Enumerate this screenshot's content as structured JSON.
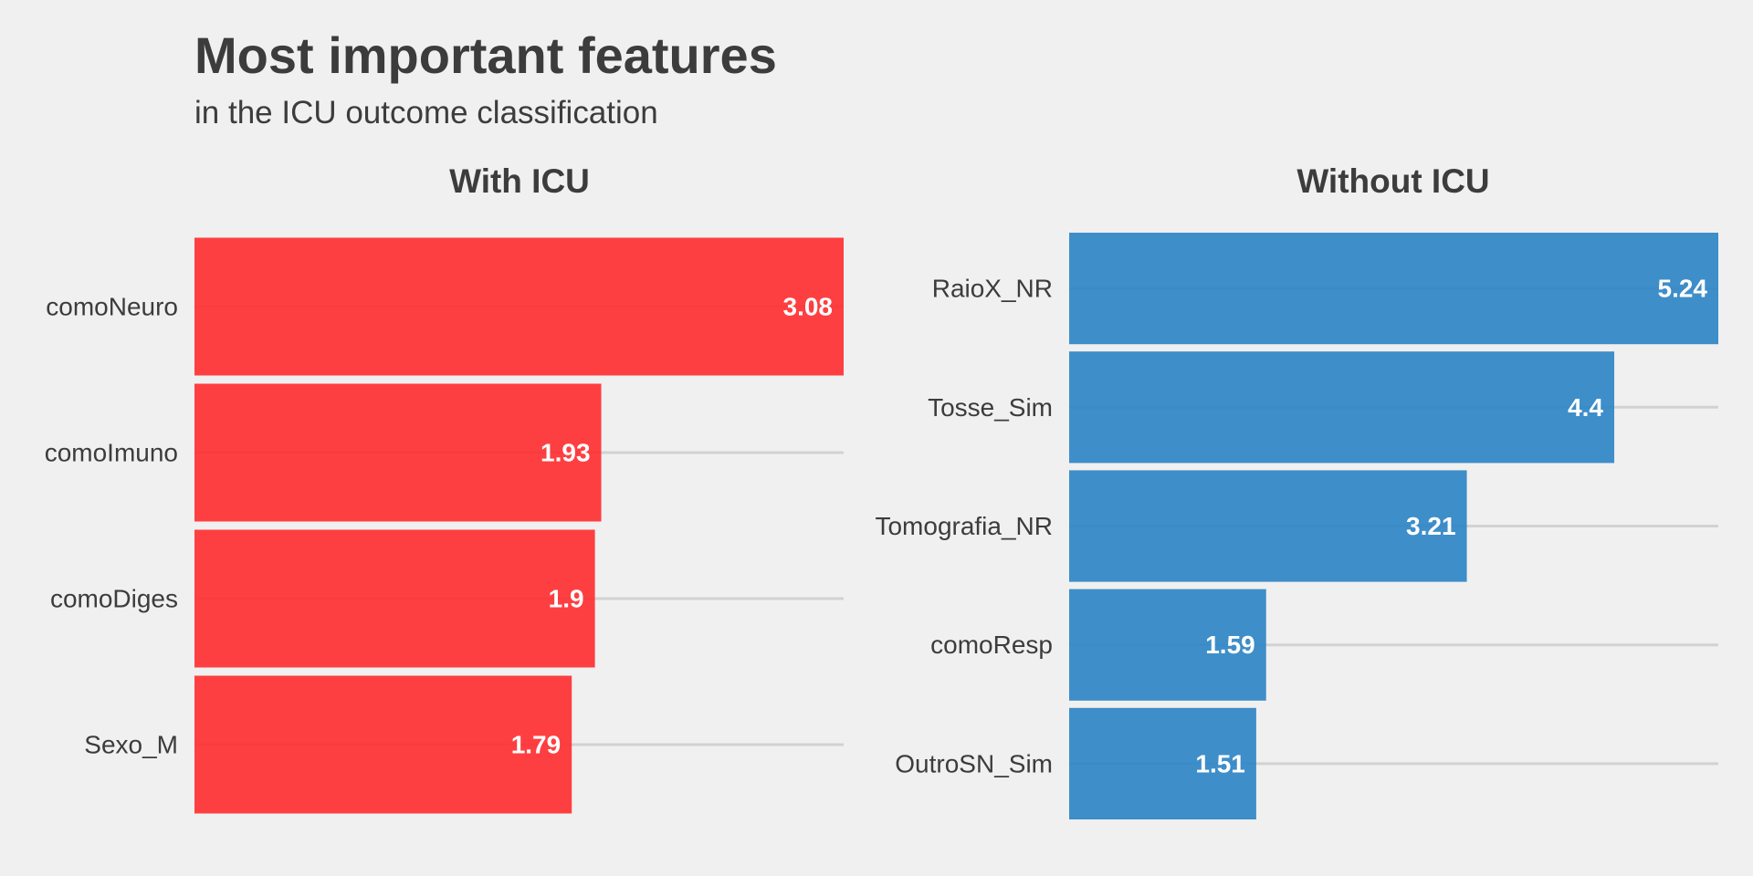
{
  "title": "Most important features",
  "subtitle": "in the ICU outcome classification",
  "chart_data": [
    {
      "type": "bar",
      "orientation": "horizontal",
      "title": "With ICU",
      "categories": [
        "comoNeuro",
        "comoImuno",
        "comoDiges",
        "Sexo_M"
      ],
      "values": [
        3.08,
        1.93,
        1.9,
        1.79
      ],
      "data_labels": [
        "3.08",
        "1.93",
        "1.9",
        "1.79"
      ],
      "color": "#ff2b2d",
      "xlim": [
        0,
        3.08
      ],
      "grid": true,
      "legend": "none"
    },
    {
      "type": "bar",
      "orientation": "horizontal",
      "title": "Without ICU",
      "categories": [
        "RaioX_NR",
        "Tosse_Sim",
        "Tomografia_NR",
        "comoResp",
        "OutroSN_Sim"
      ],
      "values": [
        5.24,
        4.4,
        3.21,
        1.59,
        1.51
      ],
      "data_labels": [
        "5.24",
        "4.4",
        "3.21",
        "1.59",
        "1.51"
      ],
      "color": "#2a83c4",
      "xlim": [
        0,
        5.24
      ],
      "grid": true,
      "legend": "none"
    }
  ]
}
